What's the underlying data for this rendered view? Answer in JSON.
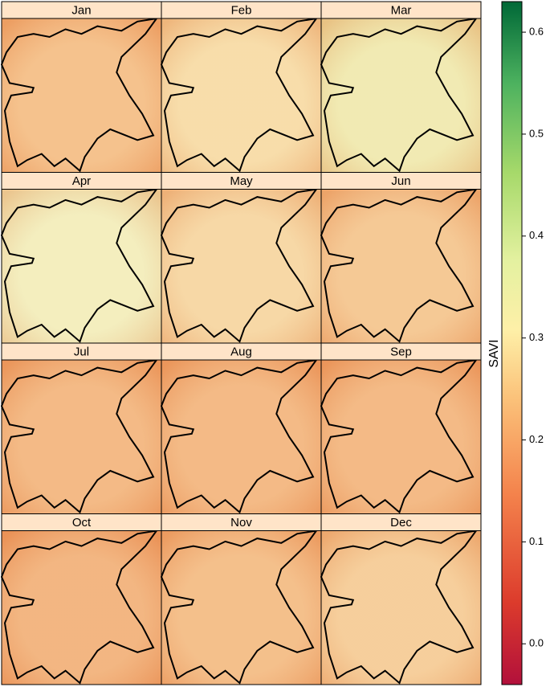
{
  "chart_data": {
    "type": "raster-panels",
    "panels": [
      {
        "label": "Jan",
        "color": "#f3b574"
      },
      {
        "label": "Feb",
        "color": "#f6d698"
      },
      {
        "label": "Mar",
        "color": "#eee6a2"
      },
      {
        "label": "Apr",
        "color": "#f1eab0"
      },
      {
        "label": "May",
        "color": "#f5cf92"
      },
      {
        "label": "Jun",
        "color": "#f3bd7e"
      },
      {
        "label": "Jul",
        "color": "#f1ab6b"
      },
      {
        "label": "Aug",
        "color": "#f1ab6b"
      },
      {
        "label": "Sep",
        "color": "#f1ab6b"
      },
      {
        "label": "Oct",
        "color": "#f0a666"
      },
      {
        "label": "Nov",
        "color": "#f2b272"
      },
      {
        "label": "Dec",
        "color": "#f4c486"
      }
    ],
    "colorbar_label": "SAVI",
    "ylim": [
      -0.04,
      0.63
    ],
    "yticks": [
      {
        "value": 0,
        "label": "0.0"
      },
      0.1,
      0.2,
      0.3,
      0.4,
      0.5,
      0.6
    ]
  }
}
